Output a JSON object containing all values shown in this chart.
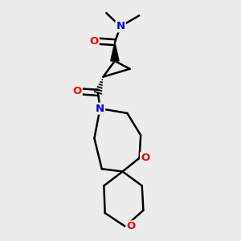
{
  "bg_color": "#ececec",
  "atom_colors": {
    "C": "#000000",
    "N": "#0000ee",
    "O": "#ee0000"
  },
  "bond_color": "#000000",
  "line_width": 1.8
}
